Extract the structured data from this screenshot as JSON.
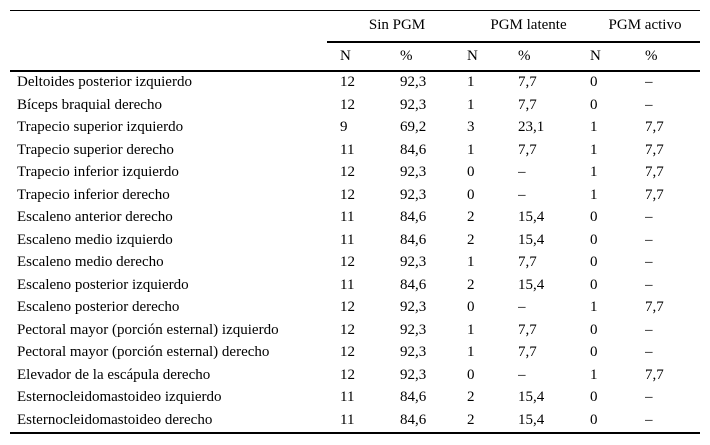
{
  "table": {
    "column_groups": [
      {
        "label": "Sin PGM"
      },
      {
        "label": "PGM latente"
      },
      {
        "label": "PGM activo"
      }
    ],
    "sub_headers": [
      "N",
      "%",
      "N",
      "%",
      "N",
      "%"
    ],
    "rows": [
      {
        "muscle": "Deltoides posterior izquierdo",
        "values": [
          "12",
          "92,3",
          "1",
          "7,7",
          "0",
          "–"
        ]
      },
      {
        "muscle": "Bíceps braquial derecho",
        "values": [
          "12",
          "92,3",
          "1",
          "7,7",
          "0",
          "–"
        ]
      },
      {
        "muscle": "Trapecio superior izquierdo",
        "values": [
          "9",
          "69,2",
          "3",
          "23,1",
          "1",
          "7,7"
        ]
      },
      {
        "muscle": "Trapecio superior derecho",
        "values": [
          "11",
          "84,6",
          "1",
          "7,7",
          "1",
          "7,7"
        ]
      },
      {
        "muscle": "Trapecio inferior izquierdo",
        "values": [
          "12",
          "92,3",
          "0",
          "–",
          "1",
          "7,7"
        ]
      },
      {
        "muscle": "Trapecio inferior derecho",
        "values": [
          "12",
          "92,3",
          "0",
          "–",
          "1",
          "7,7"
        ]
      },
      {
        "muscle": "Escaleno anterior derecho",
        "values": [
          "11",
          "84,6",
          "2",
          "15,4",
          "0",
          "–"
        ]
      },
      {
        "muscle": "Escaleno medio izquierdo",
        "values": [
          "11",
          "84,6",
          "2",
          "15,4",
          "0",
          "–"
        ]
      },
      {
        "muscle": "Escaleno medio derecho",
        "values": [
          "12",
          "92,3",
          "1",
          "7,7",
          "0",
          "–"
        ]
      },
      {
        "muscle": "Escaleno posterior izquierdo",
        "values": [
          "11",
          "84,6",
          "2",
          "15,4",
          "0",
          "–"
        ]
      },
      {
        "muscle": "Escaleno posterior derecho",
        "values": [
          "12",
          "92,3",
          "0",
          "–",
          "1",
          "7,7"
        ]
      },
      {
        "muscle": "Pectoral mayor (porción esternal) izquierdo",
        "values": [
          "12",
          "92,3",
          "1",
          "7,7",
          "0",
          "–"
        ]
      },
      {
        "muscle": "Pectoral mayor (porción esternal) derecho",
        "values": [
          "12",
          "92,3",
          "1",
          "7,7",
          "0",
          "–"
        ]
      },
      {
        "muscle": "Elevador de la escápula derecho",
        "values": [
          "12",
          "92,3",
          "0",
          "–",
          "1",
          "7,7"
        ]
      },
      {
        "muscle": "Esternocleidomastoideo izquierdo",
        "values": [
          "11",
          "84,6",
          "2",
          "15,4",
          "0",
          "–"
        ]
      },
      {
        "muscle": "Esternocleidomastoideo derecho",
        "values": [
          "11",
          "84,6",
          "2",
          "15,4",
          "0",
          "–"
        ]
      }
    ]
  }
}
